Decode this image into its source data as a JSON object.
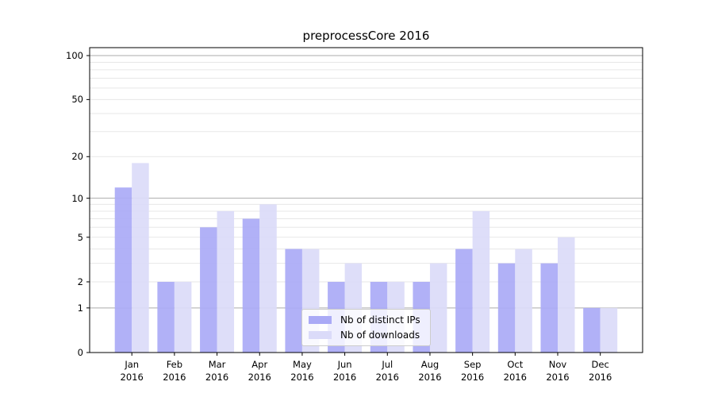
{
  "chart_data": {
    "type": "bar",
    "title": "preprocessCore 2016",
    "categories": [
      "Jan 2016",
      "Feb 2016",
      "Mar 2016",
      "Apr 2016",
      "May 2016",
      "Jun 2016",
      "Jul 2016",
      "Aug 2016",
      "Sep 2016",
      "Oct 2016",
      "Nov 2016",
      "Dec 2016"
    ],
    "series": [
      {
        "name": "Nb of distinct IPs",
        "color": "#aaaaf6",
        "values": [
          12,
          2,
          6,
          7,
          4,
          2,
          2,
          2,
          4,
          3,
          3,
          1
        ]
      },
      {
        "name": "Nb of downloads",
        "color": "#dbdbf9",
        "values": [
          18,
          2,
          8,
          9,
          4,
          3,
          2,
          3,
          8,
          4,
          5,
          1
        ]
      }
    ],
    "y_scale": "log1p",
    "ylim": [
      0,
      100
    ],
    "y_ticks": [
      0,
      1,
      2,
      5,
      10,
      20,
      50,
      100
    ],
    "gridlines_major": [
      1,
      10,
      100
    ],
    "gridlines_minor": [
      2,
      3,
      4,
      5,
      6,
      7,
      8,
      9,
      20,
      30,
      40,
      50,
      60,
      70,
      80,
      90
    ],
    "grid": true,
    "legend_position": "inside lower-center",
    "xlabel": "",
    "ylabel": ""
  },
  "colors": {
    "bar_distinct_ips": "#aaaaf6",
    "bar_downloads": "#dbdbf9",
    "grid_major": "#ababab",
    "grid_minor": "#e7e7e7",
    "axis": "#000000",
    "legend_border": "#cccccc",
    "background": "#ffffff"
  }
}
